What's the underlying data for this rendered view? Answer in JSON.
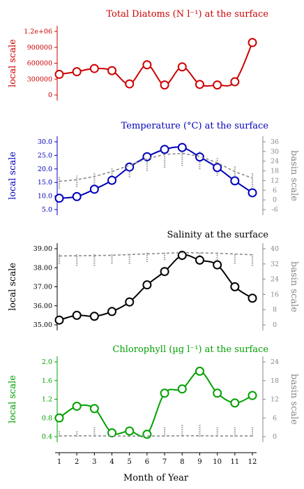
{
  "x_axis": {
    "label": "Month of Year",
    "ticks": [
      1,
      2,
      3,
      4,
      5,
      6,
      7,
      8,
      9,
      10,
      11,
      12
    ]
  },
  "chart_data": [
    {
      "type": "line",
      "title": "Total Diatoms (N l⁻¹) at the surface",
      "ylabel": "local scale",
      "color": "#cc0000",
      "x": [
        1,
        2,
        3,
        4,
        5,
        6,
        7,
        8,
        9,
        10,
        11,
        12
      ],
      "ylim": [
        0,
        1200000
      ],
      "yticks": [
        0,
        300000,
        600000,
        900000,
        1200000
      ],
      "ytick_labels": [
        "0",
        "300000",
        "600000",
        "900000",
        "1.2e+06"
      ],
      "series": [
        {
          "values": [
            390000,
            440000,
            500000,
            460000,
            210000,
            570000,
            190000,
            530000,
            200000,
            190000,
            250000,
            990000
          ]
        }
      ]
    },
    {
      "type": "line",
      "title": "Temperature (°C) at the surface",
      "ylabel": "local scale",
      "y2label": "basin scale",
      "color": "#0000bb",
      "x": [
        1,
        2,
        3,
        4,
        5,
        6,
        7,
        8,
        9,
        10,
        11,
        12
      ],
      "ylim": [
        5,
        30
      ],
      "yticks": [
        5,
        10,
        15,
        20,
        25,
        30
      ],
      "y2lim": [
        -6,
        36
      ],
      "y2ticks": [
        -6,
        0,
        6,
        12,
        18,
        24,
        30,
        36
      ],
      "series": [
        {
          "axis": "local",
          "style": "solid-circles",
          "values": [
            9.2,
            9.8,
            12.5,
            15.8,
            20.7,
            24.5,
            27.2,
            27.9,
            24.4,
            20.5,
            15.6,
            11.2
          ]
        },
        {
          "axis": "basin",
          "style": "dashed",
          "values": [
            11.5,
            12.5,
            14.5,
            17.5,
            21.5,
            25.5,
            28.2,
            28.8,
            27.0,
            23.0,
            17.5,
            13.5
          ]
        }
      ],
      "basin_spread": [
        [
          7,
          14
        ],
        [
          8,
          15
        ],
        [
          9,
          17
        ],
        [
          11,
          20
        ],
        [
          14,
          23
        ],
        [
          18,
          27
        ],
        [
          20,
          30
        ],
        [
          21,
          31
        ],
        [
          19,
          30
        ],
        [
          15,
          26
        ],
        [
          11,
          21
        ],
        [
          8,
          17
        ]
      ]
    },
    {
      "type": "line",
      "title": "Salinity at the surface",
      "ylabel": "local scale",
      "y2label": "basin scale",
      "color": "#000000",
      "x": [
        1,
        2,
        3,
        4,
        5,
        6,
        7,
        8,
        9,
        10,
        11,
        12
      ],
      "ylim": [
        35.0,
        39.0
      ],
      "yticks": [
        35.0,
        36.0,
        37.0,
        38.0,
        39.0
      ],
      "ytick_labels": [
        "35.00",
        "36.00",
        "37.00",
        "38.00",
        "39.00"
      ],
      "y2lim": [
        0,
        40
      ],
      "y2ticks": [
        0,
        8,
        16,
        24,
        32,
        40
      ],
      "series": [
        {
          "axis": "local",
          "style": "solid-circles",
          "values": [
            35.25,
            35.5,
            35.45,
            35.7,
            36.2,
            37.1,
            37.8,
            38.65,
            38.4,
            38.15,
            37.0,
            36.4
          ]
        },
        {
          "axis": "basin",
          "style": "dashed",
          "values": [
            36.2,
            36.3,
            36.4,
            36.5,
            36.9,
            37.3,
            37.6,
            37.9,
            37.8,
            37.6,
            37.2,
            36.8
          ]
        }
      ],
      "basin_spread": [
        [
          32,
          37
        ],
        [
          31,
          37
        ],
        [
          31,
          37
        ],
        [
          32,
          37
        ],
        [
          32,
          37
        ],
        [
          33,
          38
        ],
        [
          34,
          38
        ],
        [
          34,
          38
        ],
        [
          34,
          38
        ],
        [
          33,
          38
        ],
        [
          32,
          37
        ],
        [
          31,
          37
        ]
      ]
    },
    {
      "type": "line",
      "title": "Chlorophyll (µg l⁻¹) at the surface",
      "ylabel": "local scale",
      "y2label": "basin scale",
      "color": "#00a000",
      "x": [
        1,
        2,
        3,
        4,
        5,
        6,
        7,
        8,
        9,
        10,
        11,
        12
      ],
      "ylim": [
        0.4,
        2.0
      ],
      "yticks": [
        0.4,
        0.8,
        1.2,
        1.6,
        2.0
      ],
      "y2lim": [
        0,
        24
      ],
      "y2ticks": [
        0,
        6,
        12,
        18,
        24
      ],
      "series": [
        {
          "axis": "local",
          "style": "solid-circles",
          "values": [
            0.8,
            1.05,
            1.0,
            0.48,
            0.52,
            0.45,
            1.33,
            1.42,
            1.8,
            1.33,
            1.12,
            1.28
          ]
        },
        {
          "axis": "basin",
          "style": "dashed",
          "values": [
            0.21,
            0.26,
            0.24,
            0.18,
            0.15,
            0.15,
            0.23,
            0.26,
            0.26,
            0.22,
            0.21,
            0.21
          ]
        }
      ],
      "basin_spread": [
        [
          0,
          2
        ],
        [
          0,
          2
        ],
        [
          0,
          3
        ],
        [
          0,
          2
        ],
        [
          0,
          2
        ],
        [
          0,
          2
        ],
        [
          0,
          3
        ],
        [
          0,
          4
        ],
        [
          0,
          4
        ],
        [
          0,
          3
        ],
        [
          0,
          3
        ],
        [
          0,
          3
        ]
      ]
    }
  ]
}
